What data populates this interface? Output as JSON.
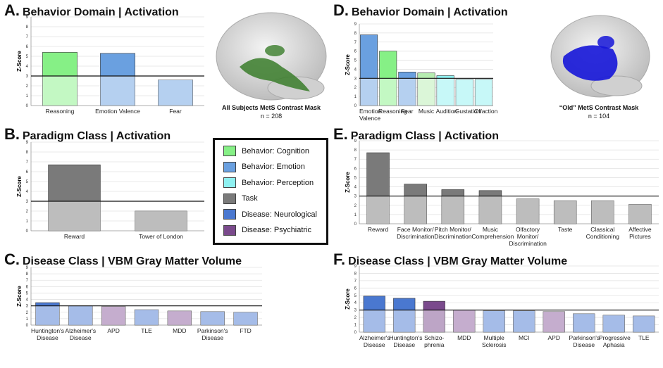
{
  "chart_data": [
    {
      "type": "bar",
      "panel_label": "A.",
      "title": "Behavior Domain | Activation",
      "y_label": "Z-Score",
      "categories": [
        "Reasoning",
        "Emotion Valence",
        "Fear"
      ],
      "values": [
        5.4,
        5.3,
        2.6
      ],
      "colors": [
        "#86f086",
        "#6aa0e0",
        "#6aa0e0"
      ],
      "ylim": [
        0,
        9
      ],
      "yticks": [
        0,
        1,
        2,
        3,
        4,
        5,
        6,
        7,
        8,
        9
      ],
      "threshold": 3,
      "grid": true
    },
    {
      "type": "bar",
      "panel_label": "B.",
      "title": "Paradigm Class | Activation",
      "y_label": "Z-Score",
      "categories": [
        "Reward",
        "Tower of London"
      ],
      "values": [
        6.7,
        2.0
      ],
      "colors": [
        "#7a7a7a",
        "#7a7a7a"
      ],
      "ylim": [
        0,
        9
      ],
      "yticks": [
        0,
        1,
        2,
        3,
        4,
        5,
        6,
        7,
        8,
        9
      ],
      "threshold": 3,
      "grid": true
    },
    {
      "type": "bar",
      "panel_label": "C.",
      "title": "Disease Class | VBM Gray Matter Volume",
      "y_label": "Z-Score",
      "categories": [
        "Huntington's Disease",
        "Alzheimer's Disease",
        "APD",
        "TLE",
        "MDD",
        "Parkinson's Disease",
        "FTD"
      ],
      "values": [
        3.5,
        3.0,
        2.9,
        2.4,
        2.2,
        2.1,
        2.0
      ],
      "colors": [
        "#4a78d0",
        "#4a78d0",
        "#8a5a9c",
        "#4a78d0",
        "#8a5a9c",
        "#4a78d0",
        "#4a78d0"
      ],
      "ylim": [
        0,
        9
      ],
      "yticks": [
        0,
        1,
        2,
        3,
        4,
        5,
        6,
        7,
        8,
        9
      ],
      "threshold": 3,
      "grid": true
    },
    {
      "type": "bar",
      "panel_label": "D.",
      "title": "Behavior Domain | Activation",
      "y_label": "Z-Score",
      "categories": [
        "Emotion Valence",
        "Reasoning",
        "Fear",
        "Music",
        "Audition",
        "Gustation",
        "Olfaction"
      ],
      "values": [
        7.8,
        6.0,
        3.7,
        3.6,
        3.3,
        2.9,
        2.9
      ],
      "colors": [
        "#6aa0e0",
        "#86f086",
        "#6aa0e0",
        "#b6ecb0",
        "#8ef0f0",
        "#8ef0f0",
        "#8ef0f0"
      ],
      "ylim": [
        0,
        9
      ],
      "yticks": [
        0,
        1,
        2,
        3,
        4,
        5,
        6,
        7,
        8,
        9
      ],
      "threshold": 3,
      "grid": true
    },
    {
      "type": "bar",
      "panel_label": "E.",
      "title": "Paradigm Class | Activation",
      "y_label": "Z-Score",
      "categories": [
        "Reward",
        "Face Monitor/ Discrimination",
        "Pitch Monitor/ Discrimination",
        "Music Comprehension",
        "Olfactory Monitor/ Discrimination",
        "Taste",
        "Classical Conditioning",
        "Affective Pictures"
      ],
      "values": [
        7.7,
        4.3,
        3.7,
        3.6,
        2.7,
        2.5,
        2.5,
        2.1
      ],
      "colors": [
        "#7a7a7a",
        "#7a7a7a",
        "#7a7a7a",
        "#7a7a7a",
        "#7a7a7a",
        "#7a7a7a",
        "#7a7a7a",
        "#7a7a7a"
      ],
      "ylim": [
        0,
        9
      ],
      "yticks": [
        0,
        1,
        2,
        3,
        4,
        5,
        6,
        7,
        8,
        9
      ],
      "threshold": 3,
      "grid": true
    },
    {
      "type": "bar",
      "panel_label": "F.",
      "title": "Disease Class | VBM Gray Matter Volume",
      "y_label": "Z-Score",
      "categories": [
        "Alzheimer's Disease",
        "Huntington's Disease",
        "Schizo-phrenia",
        "MDD",
        "Multiple Sclerosis",
        "MCI",
        "APD",
        "Parkinson's Disease",
        "Progressive Aphasia",
        "TLE"
      ],
      "values": [
        4.9,
        4.6,
        4.2,
        3.0,
        2.9,
        2.9,
        2.8,
        2.5,
        2.3,
        2.2
      ],
      "colors": [
        "#4a78d0",
        "#4a78d0",
        "#7a4a8c",
        "#8a5a9c",
        "#4a78d0",
        "#4a78d0",
        "#8a5a9c",
        "#4a78d0",
        "#4a78d0",
        "#4a78d0"
      ],
      "ylim": [
        0,
        9
      ],
      "yticks": [
        0,
        1,
        2,
        3,
        4,
        5,
        6,
        7,
        8,
        9
      ],
      "threshold": 3,
      "grid": true
    }
  ],
  "legend": [
    {
      "name": "Behavior: Cognition",
      "color": "#86f086"
    },
    {
      "name": "Behavior: Emotion",
      "color": "#6aa0e0"
    },
    {
      "name": "Behavior: Perception",
      "color": "#8ef0f0"
    },
    {
      "name": "Task",
      "color": "#7a7a7a"
    },
    {
      "name": "Disease: Neurological",
      "color": "#4a78d0"
    },
    {
      "name": "Disease: Psychiatric",
      "color": "#7a4a8c"
    }
  ],
  "masks": [
    {
      "caption": "All Subjects MetS Contrast Mask",
      "n": "n = 208"
    },
    {
      "caption": "“Old” MetS Contrast Mask",
      "n": "n = 104"
    }
  ]
}
